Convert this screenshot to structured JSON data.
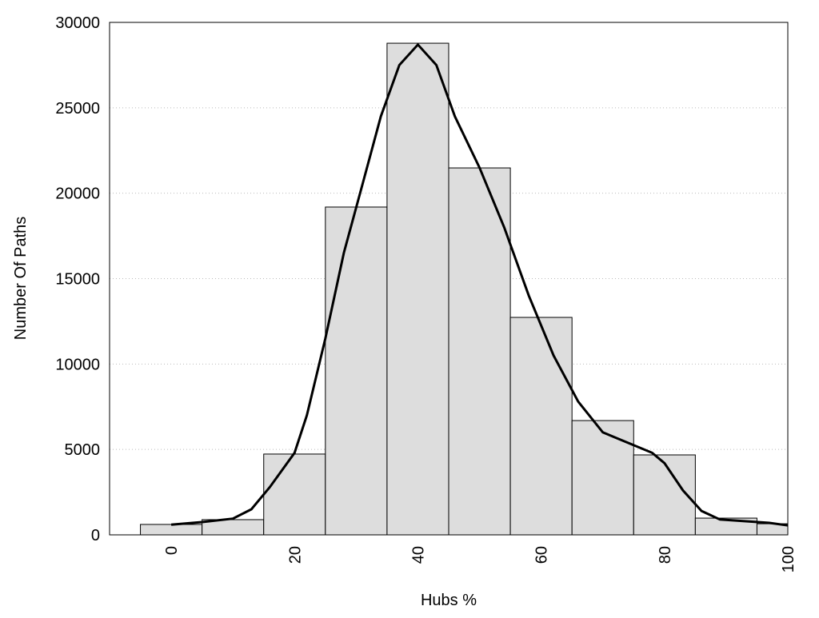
{
  "chart_data": {
    "type": "bar",
    "title": "",
    "xlabel": "Hubs %",
    "ylabel": "Number Of Paths",
    "xlim": [
      -10,
      100
    ],
    "ylim": [
      0,
      30000
    ],
    "bar_width": 10,
    "x": [
      0,
      10,
      20,
      30,
      40,
      50,
      60,
      70,
      80,
      90,
      100
    ],
    "values": [
      610,
      890,
      4730,
      19190,
      28780,
      21480,
      12730,
      6690,
      4680,
      980,
      650
    ],
    "xticks": [
      0,
      20,
      40,
      60,
      80,
      100
    ],
    "yticks": [
      0,
      5000,
      10000,
      15000,
      20000,
      25000,
      30000
    ],
    "grid": "y-dotted",
    "bar_color": "#dddddd",
    "curve": {
      "type": "line",
      "x": [
        0,
        5,
        10,
        13,
        16,
        20,
        22,
        25,
        28,
        31,
        34,
        37,
        40,
        43,
        46,
        50,
        54,
        58,
        62,
        66,
        70,
        74,
        78,
        80,
        83,
        86,
        89,
        93,
        97,
        100
      ],
      "y": [
        600,
        750,
        950,
        1500,
        2800,
        4800,
        7000,
        11500,
        16500,
        20500,
        24500,
        27500,
        28700,
        27500,
        24500,
        21500,
        18000,
        14000,
        10500,
        7800,
        6000,
        5400,
        4800,
        4200,
        2600,
        1400,
        900,
        800,
        700,
        550
      ]
    }
  }
}
